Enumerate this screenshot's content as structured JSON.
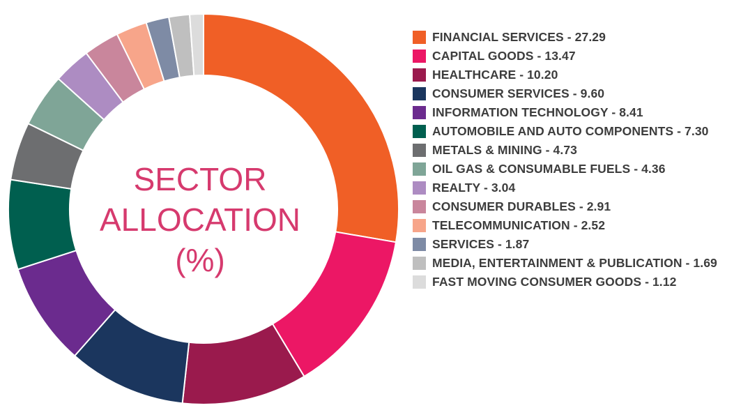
{
  "chart_data": {
    "type": "pie",
    "title_lines": [
      "SECTOR",
      "ALLOCATION",
      "(%)"
    ],
    "legend_position": "right",
    "slices": [
      {
        "label": "FINANCIAL SERVICES - 27.29",
        "value": 27.29,
        "color": "#f05f26"
      },
      {
        "label": "CAPITAL GOODS - 13.47",
        "value": 13.47,
        "color": "#ec1765"
      },
      {
        "label": "HEALTHCARE - 10.20",
        "value": 10.2,
        "color": "#9a1a4d"
      },
      {
        "label": "CONSUMER SERVICES - 9.60",
        "value": 9.6,
        "color": "#1b365e"
      },
      {
        "label": "INFORMATION TECHNOLOGY - 8.41",
        "value": 8.41,
        "color": "#6b2b8e"
      },
      {
        "label": "AUTOMOBILE AND AUTO COMPONENTS - 7.30",
        "value": 7.3,
        "color": "#005f4f"
      },
      {
        "label": "METALS & MINING - 4.73",
        "value": 4.73,
        "color": "#6d6e70"
      },
      {
        "label": "OIL GAS & CONSUMABLE FUELS - 4.36",
        "value": 4.36,
        "color": "#7fa597"
      },
      {
        "label": "REALTY - 3.04",
        "value": 3.04,
        "color": "#ad8cc2"
      },
      {
        "label": "CONSUMER DURABLES - 2.91",
        "value": 2.91,
        "color": "#c9869c"
      },
      {
        "label": "TELECOMMUNICATION - 2.52",
        "value": 2.52,
        "color": "#f7a58a"
      },
      {
        "label": "SERVICES - 1.87",
        "value": 1.87,
        "color": "#7e8ba5"
      },
      {
        "label": "MEDIA, ENTERTAINMENT & PUBLICATION - 1.69",
        "value": 1.69,
        "color": "#bfbfbf"
      },
      {
        "label": "FAST MOVING CONSUMER GOODS - 1.12",
        "value": 1.12,
        "color": "#dcdcdc"
      }
    ]
  }
}
